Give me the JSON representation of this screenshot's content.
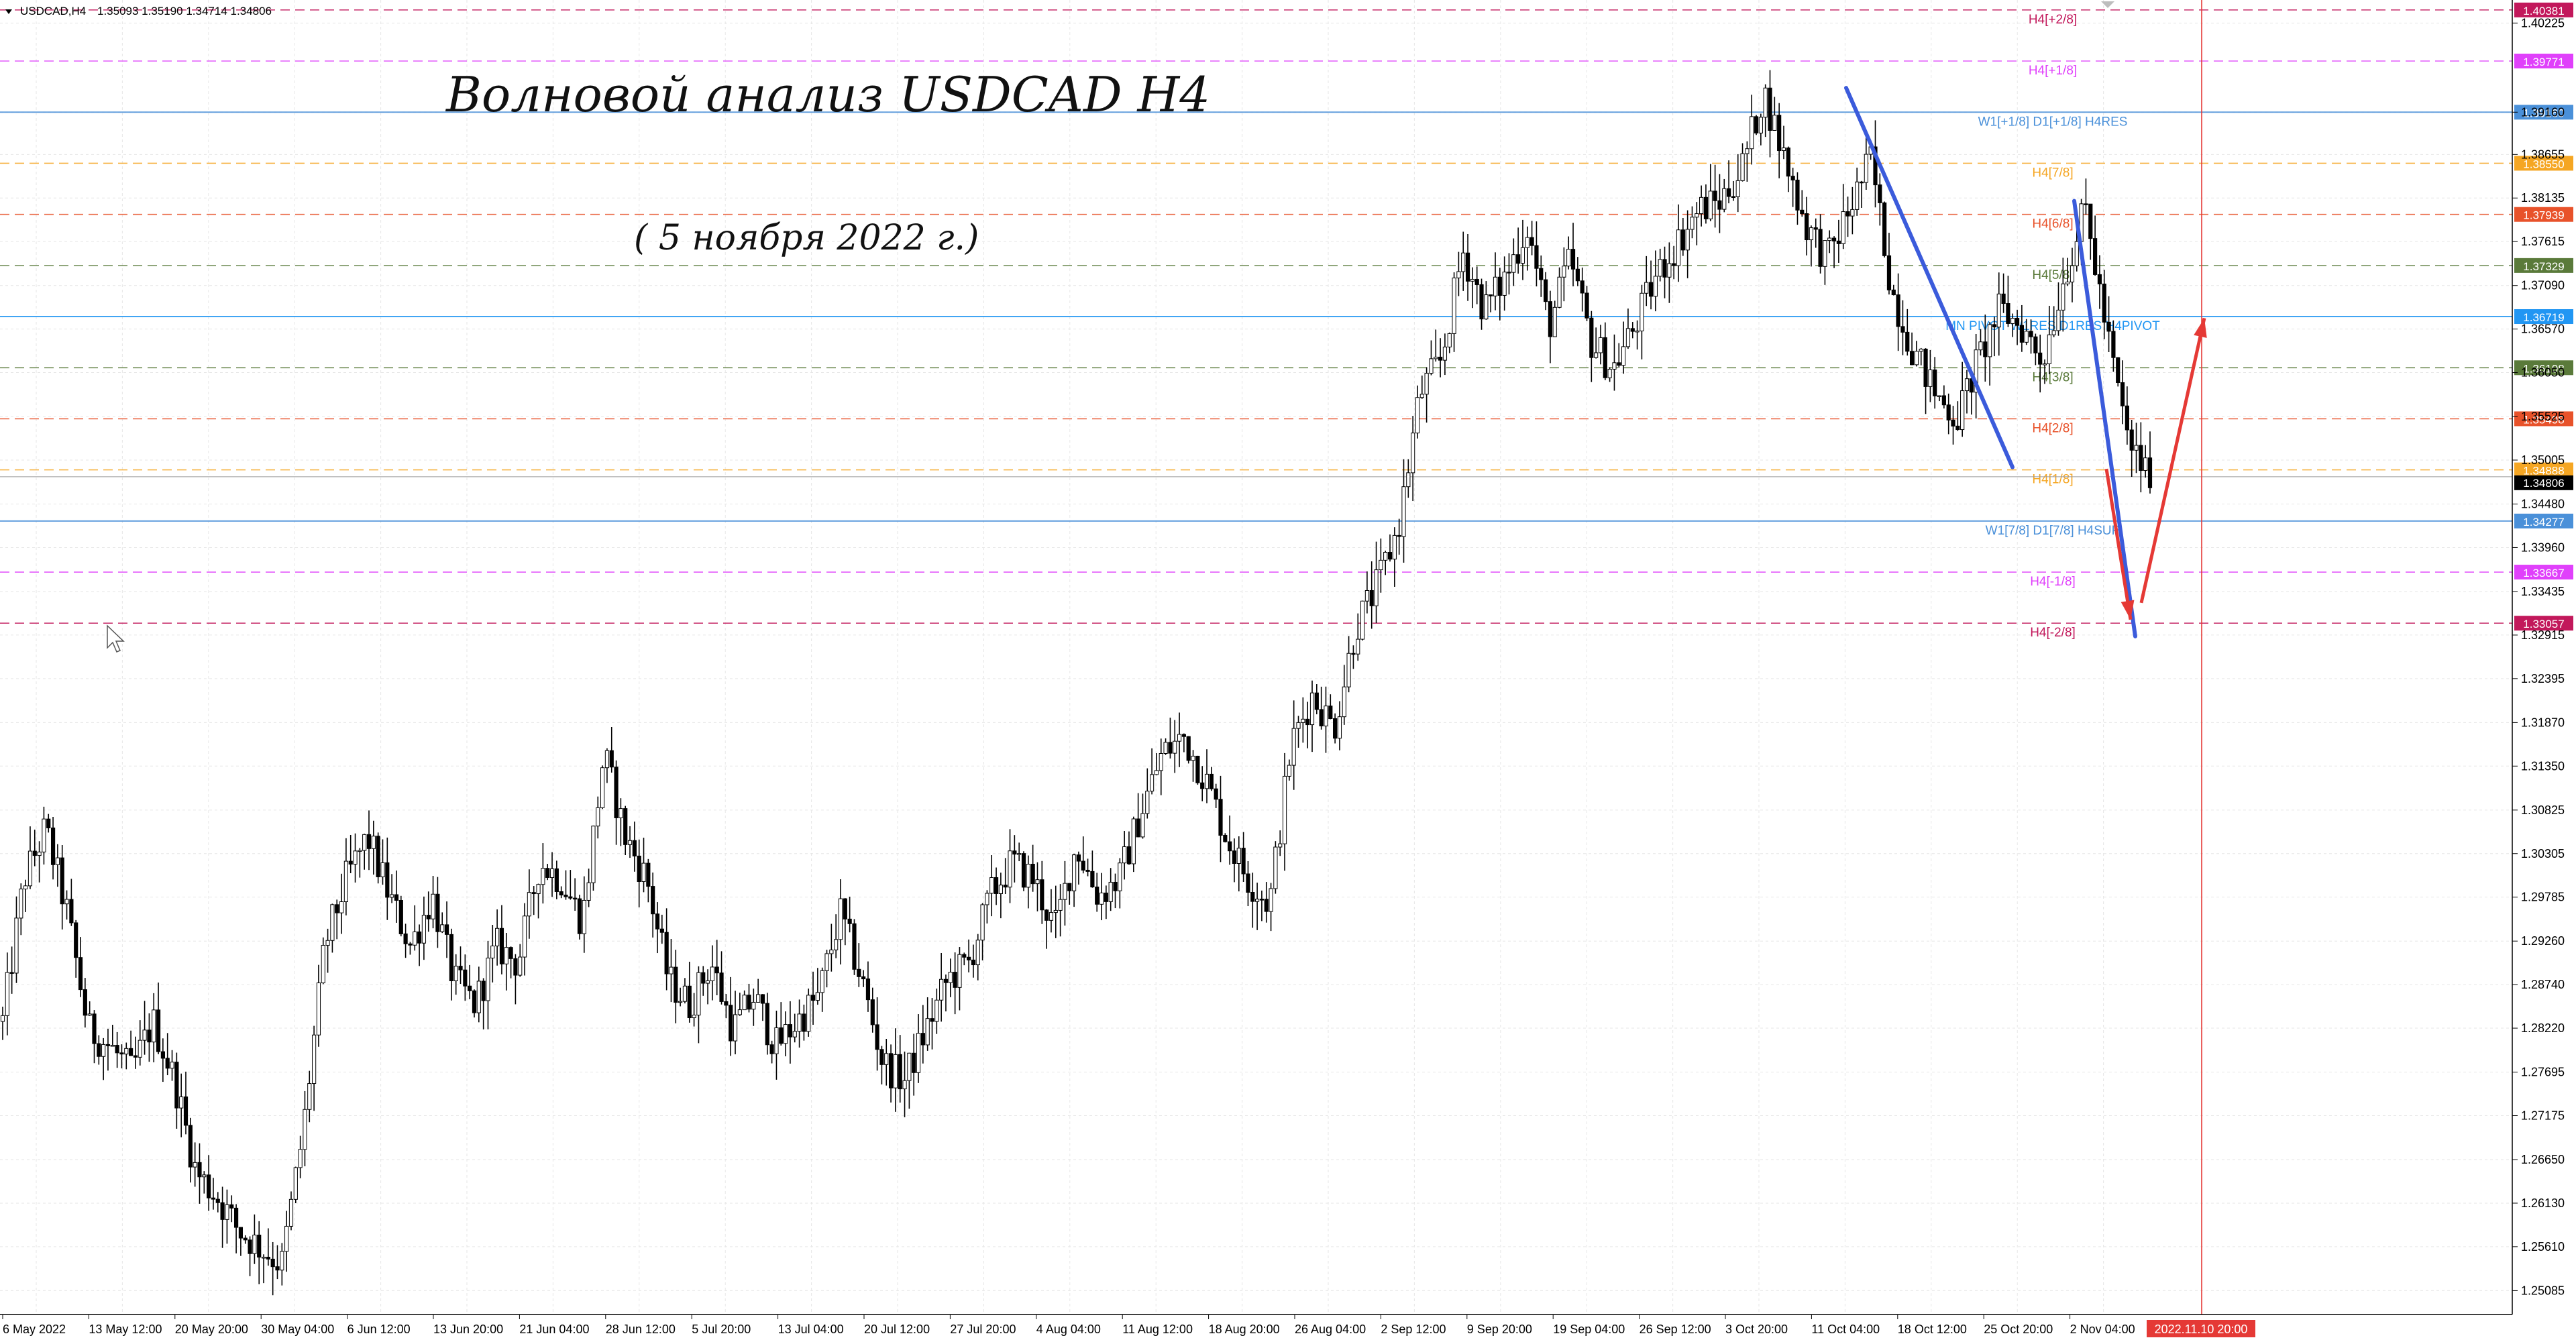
{
  "header": {
    "symbol": "USDCAD,H4",
    "ohlc": "1.35093 1.35190 1.34714 1.34806"
  },
  "annotations": {
    "title": "Волновой анализ USDCAD H4",
    "date": "( 5 ноября 2022 г.)"
  },
  "chart_data": {
    "type": "candlestick",
    "title": "Волновой анализ USDCAD H4",
    "subtitle": "( 5 ноября 2022 г.)",
    "ylim": [
      1.248,
      1.405
    ],
    "grid": true,
    "y_ticks": [
      "1.40225",
      "1.39160",
      "1.38655",
      "1.38135",
      "1.37615",
      "1.37090",
      "1.36570",
      "1.36050",
      "1.35525",
      "1.35005",
      "1.34480",
      "1.33960",
      "1.33435",
      "1.32915",
      "1.32395",
      "1.31870",
      "1.31350",
      "1.30825",
      "1.30305",
      "1.29785",
      "1.29260",
      "1.28740",
      "1.28220",
      "1.27695",
      "1.27175",
      "1.26650",
      "1.26130",
      "1.25610",
      "1.25085"
    ],
    "x_ticks": [
      "6 May 2022",
      "13 May 12:00",
      "20 May 20:00",
      "30 May 04:00",
      "6 Jun 12:00",
      "13 Jun 20:00",
      "21 Jun 04:00",
      "28 Jun 12:00",
      "5 Jul 20:00",
      "13 Jul 04:00",
      "20 Jul 12:00",
      "27 Jul 20:00",
      "4 Aug 04:00",
      "11 Aug 12:00",
      "18 Aug 20:00",
      "26 Aug 04:00",
      "2 Sep 12:00",
      "9 Sep 20:00",
      "19 Sep 04:00",
      "26 Sep 12:00",
      "3 Oct 20:00",
      "11 Oct 04:00",
      "18 Oct 12:00",
      "25 Oct 20:00",
      "2 Nov 04:00"
    ],
    "current_time_label": "2022.11.10 20:00",
    "levels": [
      {
        "label": "H4[+2/8]",
        "price": 1.40381,
        "price_label": "1.40381",
        "color": "#c2185b",
        "style": "dashed"
      },
      {
        "label": "H4[+1/8]",
        "price": 1.39771,
        "price_label": "1.39771",
        "color": "#e040fb",
        "style": "dashed"
      },
      {
        "label": "W1[+1/8] D1[+1/8] H4RES",
        "price": 1.3916,
        "price_label": "1.39160",
        "color": "#4a90d9",
        "style": "solid"
      },
      {
        "label": "H4[7/8]",
        "price": 1.3855,
        "price_label": "1.38550",
        "color": "#f5a623",
        "style": "dashed"
      },
      {
        "label": "H4[6/8]",
        "price": 1.37939,
        "price_label": "1.37939",
        "color": "#e8522a",
        "style": "dashed"
      },
      {
        "label": "H4[5/8]",
        "price": 1.37329,
        "price_label": "1.37329",
        "color": "#5a7a3a",
        "style": "dashed"
      },
      {
        "label": "MN PIVOT W1RES D1RES H4PIVOT",
        "price": 1.36719,
        "price_label": "1.36719",
        "color": "#2196f3",
        "style": "solid"
      },
      {
        "label": "H4[3/8]",
        "price": 1.36108,
        "price_label": "1.36108",
        "color": "#5a7a3a",
        "style": "dashed"
      },
      {
        "label": "H4[2/8]",
        "price": 1.35498,
        "price_label": "1.35498",
        "color": "#e8522a",
        "style": "dashed"
      },
      {
        "label": "H4[1/8]",
        "price": 1.34888,
        "price_label": "1.34888",
        "color": "#f5a623",
        "style": "dashed"
      },
      {
        "label": "W1[7/8] D1[7/8] H4SUP",
        "price": 1.34277,
        "price_label": "1.34277",
        "color": "#4a90d9",
        "style": "solid"
      },
      {
        "label": "H4[-1/8]",
        "price": 1.33667,
        "price_label": "1.33667",
        "color": "#e040fb",
        "style": "dashed"
      },
      {
        "label": "H4[-2/8]",
        "price": 1.33057,
        "price_label": "1.33057",
        "color": "#c2185b",
        "style": "dashed"
      }
    ],
    "current_price": {
      "price": 1.34806,
      "label": "1.34806"
    },
    "price_path": [
      1.283,
      1.3,
      1.306,
      1.296,
      1.282,
      1.28,
      1.277,
      1.283,
      1.276,
      1.265,
      1.262,
      1.258,
      1.256,
      1.254,
      1.27,
      1.292,
      1.3,
      1.305,
      1.298,
      1.292,
      1.298,
      1.288,
      1.285,
      1.292,
      1.29,
      1.302,
      1.3,
      1.295,
      1.315,
      1.305,
      1.3,
      1.288,
      1.285,
      1.29,
      1.282,
      1.286,
      1.28,
      1.283,
      1.286,
      1.296,
      1.288,
      1.278,
      1.276,
      1.282,
      1.288,
      1.29,
      1.298,
      1.302,
      1.3,
      1.294,
      1.304,
      1.298,
      1.3,
      1.308,
      1.315,
      1.317,
      1.312,
      1.305,
      1.3,
      1.297,
      1.316,
      1.322,
      1.318,
      1.33,
      1.335,
      1.342,
      1.358,
      1.362,
      1.375,
      1.368,
      1.372,
      1.378,
      1.366,
      1.374,
      1.364,
      1.361,
      1.366,
      1.372,
      1.376,
      1.38,
      1.381,
      1.385,
      1.394,
      1.386,
      1.378,
      1.374,
      1.38,
      1.386,
      1.37,
      1.363,
      1.358,
      1.355,
      1.362,
      1.368,
      1.366,
      1.362,
      1.372,
      1.38,
      1.365,
      1.352,
      1.348
    ],
    "wave_lines": [
      {
        "color": "#3b5bdb",
        "from": [
          1.3945,
          "11 Oct 04:00"
        ],
        "to": [
          1.3492,
          "25 Oct 20:00"
        ]
      },
      {
        "color": "#3b5bdb",
        "from": [
          1.381,
          "2 Nov 04:00"
        ],
        "to": [
          1.329,
          "projection"
        ]
      }
    ],
    "arrows": [
      {
        "color": "#e53935",
        "from": [
          1.349,
          "2 Nov"
        ],
        "to": [
          1.331,
          "projection"
        ]
      },
      {
        "color": "#e53935",
        "from": [
          1.333,
          "projection"
        ],
        "to": [
          1.367,
          "projection"
        ]
      }
    ]
  }
}
